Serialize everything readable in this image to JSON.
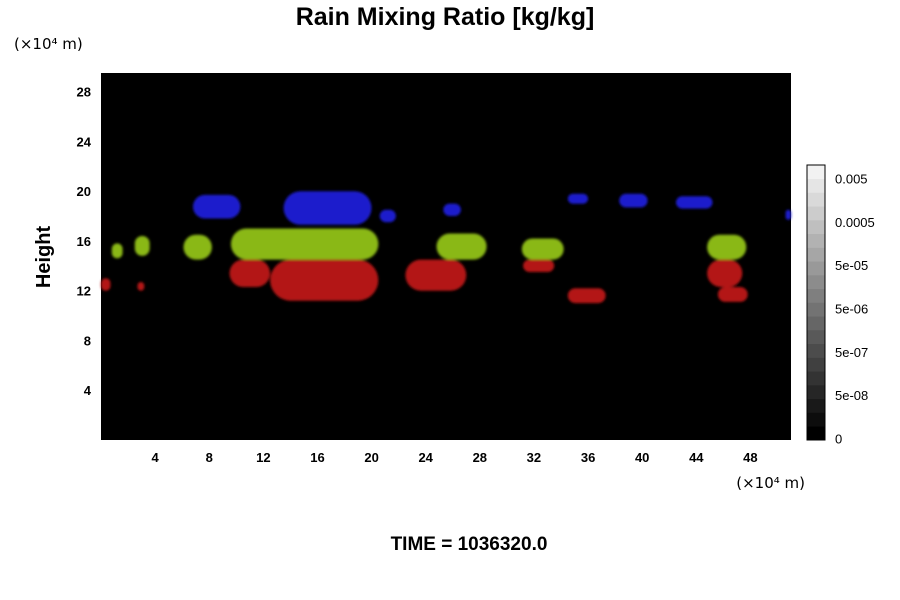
{
  "chart_data": {
    "type": "heatmap",
    "title": "Rain Mixing Ratio [kg/kg]",
    "xlabel": "",
    "ylabel": "Height",
    "x_unit_label": "(×10⁴ m)",
    "y_unit_label": "(×10⁴ m)",
    "x_ticks": [
      4,
      8,
      12,
      16,
      20,
      24,
      28,
      32,
      36,
      40,
      44,
      48
    ],
    "y_ticks": [
      4,
      8,
      12,
      16,
      20,
      24,
      28
    ],
    "xlim": [
      0,
      51
    ],
    "ylim": [
      0,
      29.5
    ],
    "background_color": "#000000",
    "colorbar": {
      "tick_labels": [
        "0.005",
        "0.0005",
        "5e-05",
        "5e-06",
        "5e-07",
        "5e-08",
        "0"
      ],
      "levels": 20,
      "colors": {
        "top": "#f2f2f2",
        "bottom": "#000000"
      }
    },
    "bands": [
      {
        "name": "blue",
        "color": "#1a1acc",
        "regions": [
          {
            "x": [
              6.8,
              10.3
            ],
            "y": [
              17.8,
              19.7
            ]
          },
          {
            "x": [
              13.5,
              20.0
            ],
            "y": [
              17.3,
              20.0
            ]
          },
          {
            "x": [
              20.6,
              21.8
            ],
            "y": [
              17.5,
              18.5
            ]
          },
          {
            "x": [
              25.3,
              26.6
            ],
            "y": [
              18.0,
              19.0
            ]
          },
          {
            "x": [
              34.5,
              36.0
            ],
            "y": [
              19.0,
              19.8
            ]
          },
          {
            "x": [
              38.3,
              40.4
            ],
            "y": [
              18.7,
              19.8
            ]
          },
          {
            "x": [
              42.5,
              45.2
            ],
            "y": [
              18.6,
              19.6
            ]
          },
          {
            "x": [
              50.6,
              51.0
            ],
            "y": [
              17.7,
              18.5
            ]
          }
        ]
      },
      {
        "name": "green",
        "color": "#8ab819",
        "regions": [
          {
            "x": [
              0.8,
              1.6
            ],
            "y": [
              14.6,
              15.8
            ]
          },
          {
            "x": [
              2.5,
              3.6
            ],
            "y": [
              14.8,
              16.4
            ]
          },
          {
            "x": [
              6.1,
              8.2
            ],
            "y": [
              14.5,
              16.5
            ]
          },
          {
            "x": [
              9.6,
              20.5
            ],
            "y": [
              14.5,
              17.0
            ]
          },
          {
            "x": [
              24.8,
              28.5
            ],
            "y": [
              14.5,
              16.6
            ]
          },
          {
            "x": [
              31.1,
              34.2
            ],
            "y": [
              14.5,
              16.2
            ]
          },
          {
            "x": [
              44.8,
              47.7
            ],
            "y": [
              14.5,
              16.5
            ]
          }
        ]
      },
      {
        "name": "red",
        "color": "#b31515",
        "regions": [
          {
            "x": [
              0.0,
              0.7
            ],
            "y": [
              12.0,
              13.0
            ]
          },
          {
            "x": [
              2.7,
              3.2
            ],
            "y": [
              12.0,
              12.7
            ]
          },
          {
            "x": [
              9.5,
              12.5
            ],
            "y": [
              12.3,
              14.5
            ]
          },
          {
            "x": [
              12.5,
              20.5
            ],
            "y": [
              11.2,
              14.5
            ]
          },
          {
            "x": [
              22.5,
              27.0
            ],
            "y": [
              12.0,
              14.5
            ]
          },
          {
            "x": [
              31.2,
              33.5
            ],
            "y": [
              13.5,
              14.5
            ]
          },
          {
            "x": [
              34.5,
              37.3
            ],
            "y": [
              11.0,
              12.2
            ]
          },
          {
            "x": [
              44.8,
              47.4
            ],
            "y": [
              12.3,
              14.5
            ]
          },
          {
            "x": [
              45.6,
              47.8
            ],
            "y": [
              11.1,
              12.3
            ]
          }
        ]
      }
    ],
    "annotation": "TIME = 1036320.0"
  }
}
